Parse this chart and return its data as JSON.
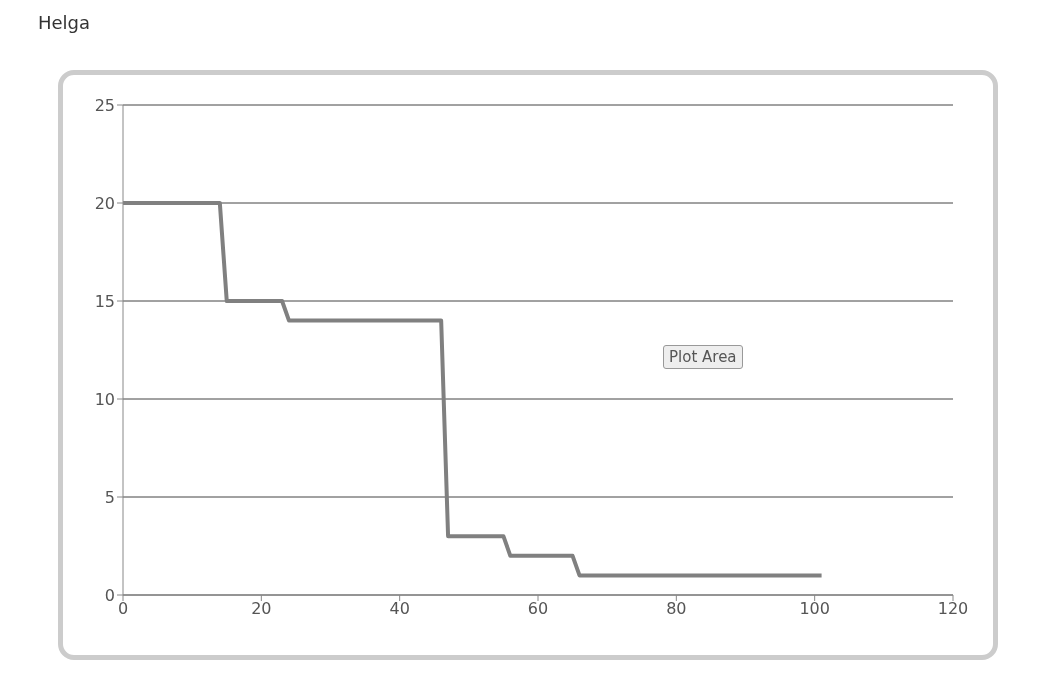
{
  "chart_data": {
    "type": "line",
    "title": "Helga",
    "x": [
      0,
      14,
      15,
      23,
      24,
      46,
      47,
      55,
      56,
      65,
      66,
      101
    ],
    "series": [
      {
        "color": "#808080",
        "values": [
          20,
          20,
          15,
          15,
          14,
          14,
          3,
          3,
          2,
          2,
          1,
          1
        ]
      }
    ],
    "xlim": [
      0,
      120
    ],
    "xticks": [
      0,
      20,
      40,
      60,
      80,
      100,
      120
    ],
    "ylim": [
      0,
      25
    ],
    "yticks": [
      0,
      5,
      10,
      15,
      20,
      25
    ],
    "grid": "y",
    "legend": false,
    "marker": "none",
    "line_style": "solid",
    "annotations": [
      "Plot Area"
    ]
  }
}
